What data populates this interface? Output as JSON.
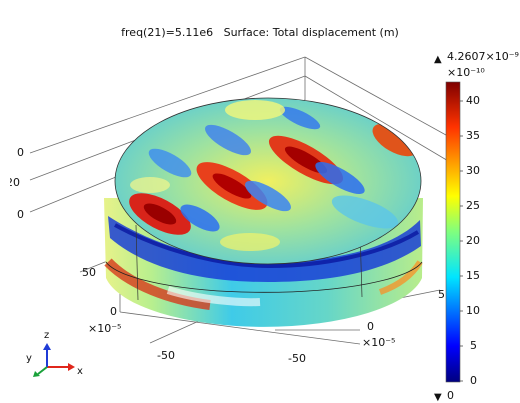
{
  "title": "freq(21)=5.11e6   Surface: Total displacement (m)",
  "colorbar": {
    "max_label": "4.2607×10⁻⁹",
    "exponent_label": "×10⁻¹⁰",
    "min_label": "0",
    "ticks": [
      "40",
      "35",
      "30",
      "25",
      "20",
      "15",
      "10",
      "5",
      "0"
    ],
    "up_arrow": "▲",
    "down_arrow": "▼"
  },
  "axes": {
    "left_ticks": [
      "0",
      "20",
      "0"
    ],
    "y_ticks": [
      "50",
      "0",
      "-50"
    ],
    "y_exp": "×10⁻⁵",
    "x_ticks": [
      "-50",
      "0",
      "5"
    ],
    "x_exp": "×10⁻⁵"
  },
  "triad": {
    "x": "x",
    "y": "y",
    "z": "z"
  }
}
